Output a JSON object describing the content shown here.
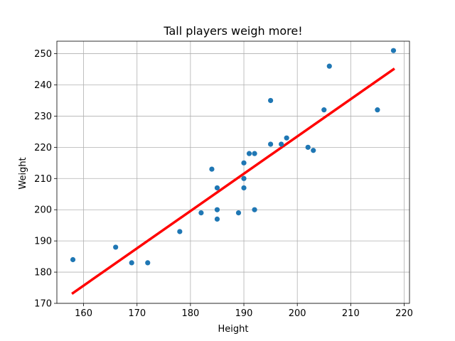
{
  "chart_data": {
    "type": "scatter",
    "title": "Tall players weigh more!",
    "xlabel": "Height",
    "ylabel": "Weight",
    "xlim": [
      155,
      221
    ],
    "ylim": [
      170,
      254
    ],
    "xticks": [
      160,
      170,
      180,
      190,
      200,
      210,
      220
    ],
    "yticks": [
      170,
      180,
      190,
      200,
      210,
      220,
      230,
      240,
      250
    ],
    "grid": true,
    "series": [
      {
        "type": "scatter",
        "color": "#1f77b4",
        "points": [
          {
            "x": 158,
            "y": 184
          },
          {
            "x": 166,
            "y": 188
          },
          {
            "x": 169,
            "y": 183
          },
          {
            "x": 172,
            "y": 183
          },
          {
            "x": 178,
            "y": 193
          },
          {
            "x": 182,
            "y": 199
          },
          {
            "x": 184,
            "y": 213
          },
          {
            "x": 185,
            "y": 207
          },
          {
            "x": 185,
            "y": 200
          },
          {
            "x": 185,
            "y": 197
          },
          {
            "x": 189,
            "y": 199
          },
          {
            "x": 190,
            "y": 215
          },
          {
            "x": 190,
            "y": 210
          },
          {
            "x": 190,
            "y": 207
          },
          {
            "x": 191,
            "y": 218
          },
          {
            "x": 192,
            "y": 218
          },
          {
            "x": 192,
            "y": 200
          },
          {
            "x": 195,
            "y": 235
          },
          {
            "x": 195,
            "y": 221
          },
          {
            "x": 197,
            "y": 221
          },
          {
            "x": 198,
            "y": 223
          },
          {
            "x": 202,
            "y": 220
          },
          {
            "x": 203,
            "y": 219
          },
          {
            "x": 205,
            "y": 232
          },
          {
            "x": 206,
            "y": 246
          },
          {
            "x": 215,
            "y": 232
          },
          {
            "x": 218,
            "y": 251
          }
        ]
      },
      {
        "type": "line",
        "color": "#ff0000",
        "points": [
          {
            "x": 158,
            "y": 173.3
          },
          {
            "x": 218,
            "y": 245
          }
        ]
      }
    ]
  }
}
